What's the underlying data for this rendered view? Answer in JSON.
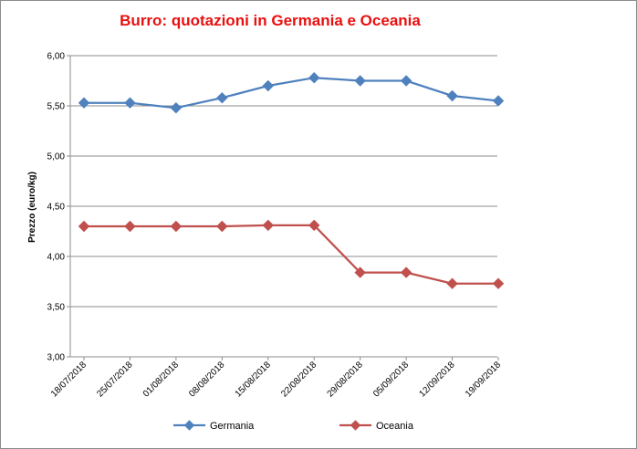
{
  "chart_data": {
    "type": "line",
    "title": "Burro: quotazioni in Germania e Oceania",
    "xlabel": "",
    "ylabel": "Prezzo (euro/kg)",
    "categories": [
      "18/07/2018",
      "25/07/2018",
      "01/08/2018",
      "08/08/2018",
      "15/08/2018",
      "22/08/2018",
      "29/08/2018",
      "05/09/2018",
      "12/09/2018",
      "19/09/2018"
    ],
    "ylim": [
      3.0,
      6.0
    ],
    "yticks": [
      "3,00",
      "3,50",
      "4,00",
      "4,50",
      "5,00",
      "5,50",
      "6,00"
    ],
    "grid": true,
    "legend_position": "bottom",
    "series": [
      {
        "name": "Germania",
        "color": "#4f81bd",
        "marker": "diamond",
        "values": [
          5.53,
          5.53,
          5.48,
          5.58,
          5.7,
          5.78,
          5.75,
          5.75,
          5.6,
          5.55
        ]
      },
      {
        "name": "Oceania",
        "color": "#c0504d",
        "marker": "diamond",
        "values": [
          4.3,
          4.3,
          4.3,
          4.3,
          4.31,
          4.31,
          3.84,
          3.84,
          3.73,
          3.73
        ]
      }
    ]
  }
}
